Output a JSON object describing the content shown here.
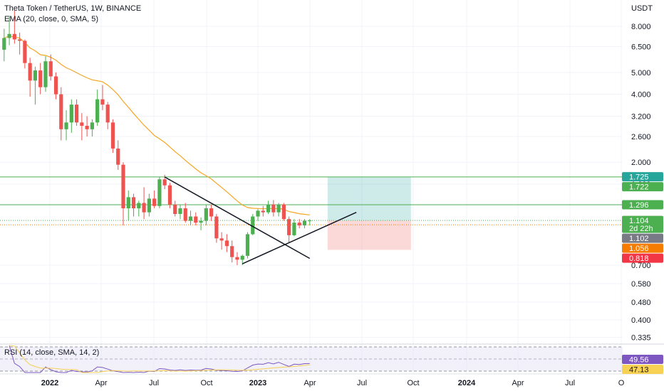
{
  "header": {
    "title": "Theta Token / TetherUS, 1W, BINANCE",
    "indicator": "EMA (20, close, 0, SMA, 5)",
    "rsi_label": "RSI (14, close, SMA, 14, 2)"
  },
  "colors": {
    "up": "#26a69a",
    "up_candle": "#4caf50",
    "down": "#ef5350",
    "ema": "#f5a623",
    "rsi": "#7e57c2",
    "rsi_ma": "#f7d154",
    "hline": "#4caf50",
    "trendline": "#131722"
  },
  "chart_data": {
    "type": "candlestick",
    "symbol": "Theta Token / TetherUS",
    "interval": "1W",
    "exchange": "BINANCE",
    "currency": "USDT",
    "y_scale": "log",
    "y_ticks": [
      "8.000",
      "6.500",
      "5.000",
      "4.000",
      "3.200",
      "2.600",
      "2.000",
      "1.600",
      "0.700",
      "0.580",
      "0.480",
      "0.400",
      "0.335"
    ],
    "y_tick_values": [
      8.0,
      6.5,
      5.0,
      4.0,
      3.2,
      2.6,
      2.0,
      1.6,
      0.7,
      0.58,
      0.48,
      0.4,
      0.335
    ],
    "x_ticks": [
      "2022",
      "Apr",
      "Jul",
      "Oct",
      "2023",
      "Apr",
      "Jul",
      "Oct",
      "2024",
      "Apr",
      "Jul",
      "O"
    ],
    "price_badges": [
      {
        "label": "1.725",
        "value": 1.725,
        "color": "#26a69a"
      },
      {
        "label": "1.722",
        "value": 1.722,
        "color": "#4caf50"
      },
      {
        "label": "1.296",
        "value": 1.296,
        "color": "#4caf50"
      },
      {
        "label": "1.104",
        "sub": "2d 22h",
        "value": 1.104,
        "color": "#4caf50"
      },
      {
        "label": "1.102",
        "value": 1.102,
        "color": "#787b86"
      },
      {
        "label": "1.056",
        "value": 1.056,
        "color": "#f57c00"
      },
      {
        "label": "0.818",
        "value": 0.818,
        "color": "#f23645"
      }
    ],
    "horizontal_lines": [
      1.722,
      1.296
    ],
    "position": {
      "entry": 1.104,
      "target": 1.725,
      "stop": 0.818,
      "start_week": 63,
      "end_week": 78
    },
    "trendlines": [
      {
        "from": [
          31,
          1.72
        ],
        "to": [
          59,
          0.75
        ]
      },
      {
        "from": [
          46,
          0.71
        ],
        "to": [
          68,
          1.2
        ]
      }
    ],
    "candles": [
      [
        0,
        6.3,
        7.8,
        5.6,
        7.1
      ],
      [
        1,
        7.1,
        8.9,
        6.6,
        7.4
      ],
      [
        2,
        7.4,
        9.4,
        6.7,
        7.0
      ],
      [
        3,
        7.0,
        7.5,
        6.0,
        6.9
      ],
      [
        4,
        6.9,
        7.0,
        5.2,
        5.5
      ],
      [
        5,
        5.5,
        5.8,
        3.9,
        4.6
      ],
      [
        6,
        4.6,
        5.3,
        3.6,
        5.1
      ],
      [
        7,
        5.1,
        5.5,
        4.0,
        4.3
      ],
      [
        8,
        4.3,
        5.9,
        4.1,
        5.6
      ],
      [
        9,
        5.6,
        6.0,
        4.6,
        4.8
      ],
      [
        10,
        4.8,
        5.0,
        3.8,
        4.0
      ],
      [
        11,
        4.0,
        4.3,
        2.5,
        2.8
      ],
      [
        12,
        2.8,
        3.4,
        2.5,
        3.0
      ],
      [
        13,
        3.0,
        3.8,
        2.7,
        3.6
      ],
      [
        14,
        3.6,
        3.8,
        2.9,
        3.0
      ],
      [
        15,
        3.0,
        3.3,
        2.5,
        2.9
      ],
      [
        16,
        2.9,
        3.2,
        2.6,
        2.8
      ],
      [
        17,
        2.8,
        3.1,
        2.6,
        3.0
      ],
      [
        18,
        3.0,
        4.2,
        2.9,
        3.8
      ],
      [
        19,
        3.8,
        4.4,
        3.4,
        3.6
      ],
      [
        20,
        3.6,
        3.7,
        2.8,
        3.0
      ],
      [
        21,
        3.0,
        3.1,
        2.2,
        2.3
      ],
      [
        22,
        2.3,
        2.5,
        1.85,
        1.95
      ],
      [
        23,
        1.95,
        2.0,
        1.05,
        1.25
      ],
      [
        24,
        1.25,
        1.5,
        1.1,
        1.4
      ],
      [
        25,
        1.4,
        1.45,
        1.15,
        1.25
      ],
      [
        26,
        1.25,
        1.35,
        1.15,
        1.32
      ],
      [
        27,
        1.32,
        1.55,
        1.12,
        1.2
      ],
      [
        28,
        1.2,
        1.45,
        1.15,
        1.38
      ],
      [
        29,
        1.38,
        1.5,
        1.25,
        1.28
      ],
      [
        30,
        1.28,
        1.72,
        1.25,
        1.68
      ],
      [
        31,
        1.68,
        1.76,
        1.52,
        1.58
      ],
      [
        32,
        1.58,
        1.62,
        1.25,
        1.3
      ],
      [
        33,
        1.3,
        1.35,
        1.15,
        1.18
      ],
      [
        34,
        1.18,
        1.3,
        1.12,
        1.25
      ],
      [
        35,
        1.25,
        1.32,
        1.08,
        1.1
      ],
      [
        36,
        1.1,
        1.22,
        1.05,
        1.15
      ],
      [
        37,
        1.15,
        1.2,
        1.05,
        1.08
      ],
      [
        38,
        1.08,
        1.14,
        1.0,
        1.1
      ],
      [
        39,
        1.1,
        1.3,
        1.05,
        1.25
      ],
      [
        40,
        1.25,
        1.3,
        1.1,
        1.15
      ],
      [
        41,
        1.15,
        1.18,
        0.88,
        0.92
      ],
      [
        42,
        0.92,
        0.98,
        0.82,
        0.9
      ],
      [
        43,
        0.9,
        0.96,
        0.8,
        0.85
      ],
      [
        44,
        0.85,
        0.9,
        0.72,
        0.76
      ],
      [
        45,
        0.76,
        0.8,
        0.7,
        0.74
      ],
      [
        46,
        0.74,
        0.78,
        0.7,
        0.77
      ],
      [
        47,
        0.77,
        0.98,
        0.75,
        0.96
      ],
      [
        48,
        0.96,
        1.18,
        0.95,
        1.15
      ],
      [
        49,
        1.15,
        1.24,
        1.1,
        1.22
      ],
      [
        50,
        1.22,
        1.28,
        1.15,
        1.2
      ],
      [
        51,
        1.2,
        1.35,
        1.18,
        1.3
      ],
      [
        52,
        1.3,
        1.36,
        1.15,
        1.2
      ],
      [
        53,
        1.2,
        1.32,
        1.15,
        1.3
      ],
      [
        54,
        1.3,
        1.32,
        1.1,
        1.12
      ],
      [
        55,
        1.12,
        1.15,
        0.88,
        0.95
      ],
      [
        56,
        0.95,
        1.12,
        0.94,
        1.08
      ],
      [
        57,
        1.08,
        1.12,
        1.02,
        1.05
      ],
      [
        58,
        1.05,
        1.12,
        1.02,
        1.1
      ],
      [
        59,
        1.1,
        1.12,
        1.05,
        1.104
      ]
    ],
    "ema_period": 20,
    "rsi": {
      "value": 49.56,
      "ma_value": 47.13
    }
  }
}
